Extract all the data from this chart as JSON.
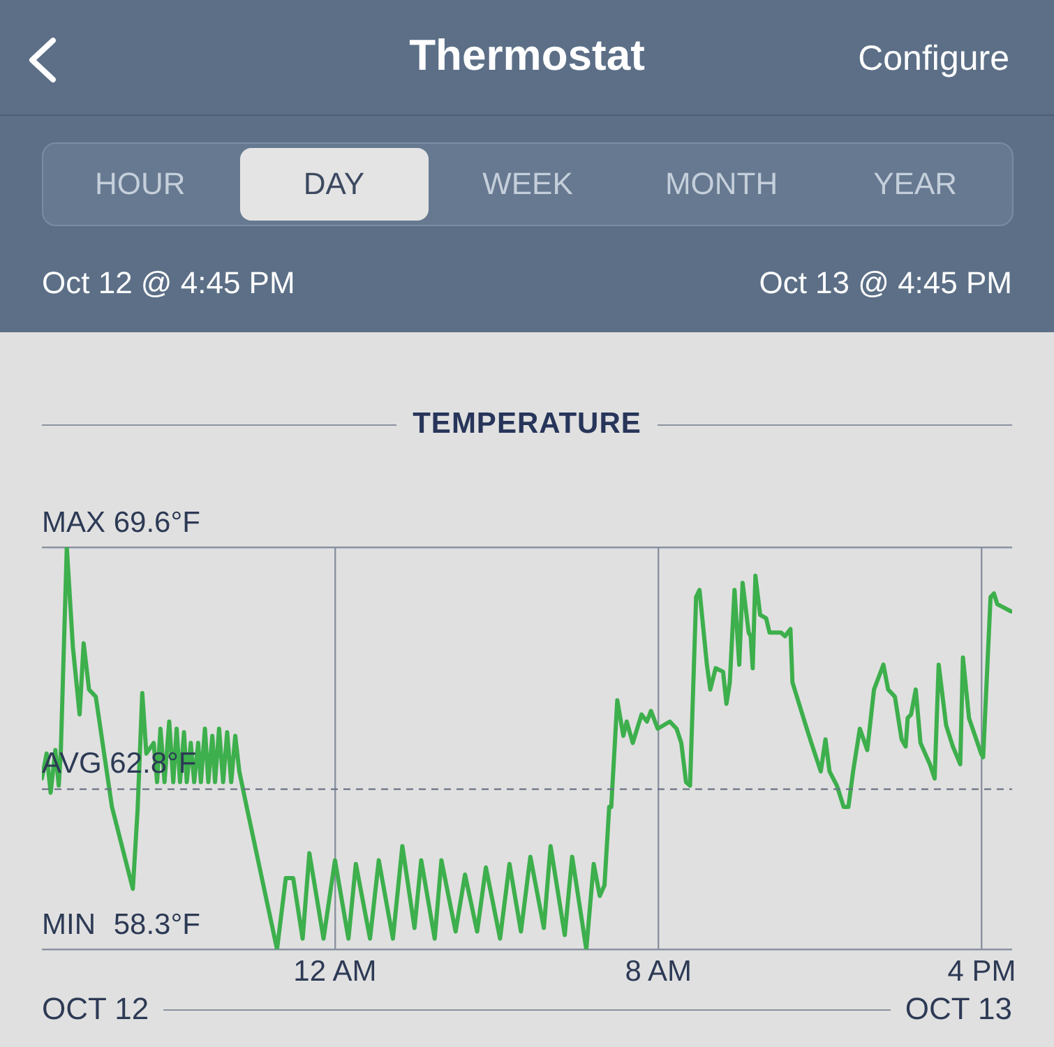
{
  "chart_data": {
    "type": "line",
    "title": "TEMPERATURE",
    "x": [
      "--10-12T16:45",
      "--10-12T16:52",
      "--10-12T16:58",
      "--10-12T17:05",
      "--10-12T17:10",
      "--10-12T17:13",
      "--10-12T17:22",
      "--10-12T17:31",
      "--10-12T17:41",
      "--10-12T17:47",
      "--10-12T17:55",
      "--10-12T18:05",
      "--10-12T18:29",
      "--10-12T19:00",
      "--10-12T19:07",
      "--10-12T19:14",
      "--10-12T19:20",
      "--10-12T19:31",
      "--10-12T19:36",
      "--10-12T19:41",
      "--10-12T19:47",
      "--10-12T19:54",
      "--10-12T20:00",
      "--10-12T20:05",
      "--10-12T20:10",
      "--10-12T20:16",
      "--10-12T20:20",
      "--10-12T20:26",
      "--10-12T20:31",
      "--10-12T20:37",
      "--10-12T20:41",
      "--10-12T20:47",
      "--10-12T20:52",
      "--10-12T20:58",
      "--10-12T21:02",
      "--10-12T21:08",
      "--10-12T21:14",
      "--10-12T21:20",
      "--10-12T21:26",
      "--10-12T21:32",
      "--10-12T21:38",
      "--10-12T21:49",
      "--10-12T22:34",
      "--10-12T22:47",
      "--10-12T22:58",
      "--10-12T23:12",
      "--10-12T23:22",
      "--10-12T23:43",
      "--10-13T00:00",
      "--10-13T00:20",
      "--10-13T00:31",
      "--10-13T00:52",
      "--10-13T01:05",
      "--10-13T01:26",
      "--10-13T01:40",
      "--10-13T01:58",
      "--10-13T02:08",
      "--10-13T02:28",
      "--10-13T02:38",
      "--10-13T02:59",
      "--10-13T03:13",
      "--10-13T03:31",
      "--10-13T03:44",
      "--10-13T04:05",
      "--10-13T04:19",
      "--10-13T04:36",
      "--10-13T04:50",
      "--10-13T05:10",
      "--10-13T05:20",
      "--10-13T05:41",
      "--10-13T05:52",
      "--10-13T06:13",
      "--10-13T06:24",
      "--10-13T06:33",
      "--10-13T06:40",
      "--10-13T06:47",
      "--10-13T06:50",
      "--10-13T06:59",
      "--10-13T07:08",
      "--10-13T07:13",
      "--10-13T07:22",
      "--10-13T07:35",
      "--10-13T07:43",
      "--10-13T07:49",
      "--10-13T07:59",
      "--10-13T08:17",
      "--10-13T08:27",
      "--10-13T08:34",
      "--10-13T08:41",
      "--10-13T08:47",
      "--10-13T08:56",
      "--10-13T09:01",
      "--10-13T09:12",
      "--10-13T09:17",
      "--10-13T09:25",
      "--10-13T09:36",
      "--10-13T09:41",
      "--10-13T09:46",
      "--10-13T09:53",
      "--10-13T10:00",
      "--10-13T10:05",
      "--10-13T10:14",
      "--10-13T10:17",
      "--10-13T10:20",
      "--10-13T10:24",
      "--10-13T10:31",
      "--10-13T10:40",
      "--10-13T10:45",
      "--10-13T11:02",
      "--10-13T11:08",
      "--10-13T11:16",
      "--10-13T11:19",
      "--10-13T11:37",
      "--10-13T11:47",
      "--10-13T12:01",
      "--10-13T12:08",
      "--10-13T12:14",
      "--10-13T12:25",
      "--10-13T12:35",
      "--10-13T12:42",
      "--10-13T12:49",
      "--10-13T12:59",
      "--10-13T13:10",
      "--10-13T13:20",
      "--10-13T13:34",
      "--10-13T13:41",
      "--10-13T13:51",
      "--10-13T14:01",
      "--10-13T14:07",
      "--10-13T14:10",
      "--10-13T14:15",
      "--10-13T14:22",
      "--10-13T14:29",
      "--10-13T14:43",
      "--10-13T14:50",
      "--10-13T14:56",
      "--10-13T15:07",
      "--10-13T15:17",
      "--10-13T15:28",
      "--10-13T15:32",
      "--10-13T15:41",
      "--10-13T15:59",
      "--10-13T16:02",
      "--10-13T16:13",
      "--10-13T16:18",
      "--10-13T16:23",
      "--10-13T16:33",
      "--10-13T16:43"
    ],
    "series": [
      {
        "color": "#3daf4c",
        "values": [
          63.1,
          63.8,
          62.7,
          63.9,
          62.9,
          63.8,
          69.6,
          66.8,
          64.9,
          66.9,
          65.6,
          65.4,
          62.3,
          60.0,
          62.2,
          65.5,
          63.8,
          64.1,
          63.0,
          64.5,
          63.0,
          64.7,
          63.0,
          64.5,
          63.0,
          64.4,
          63.0,
          64.1,
          63.0,
          64.1,
          63.0,
          64.5,
          63.0,
          64.3,
          63.0,
          64.5,
          63.0,
          64.4,
          63.0,
          64.3,
          63.3,
          62.3,
          58.3,
          60.3,
          60.3,
          58.6,
          61.0,
          58.6,
          60.8,
          58.6,
          60.7,
          58.6,
          60.8,
          58.6,
          61.2,
          58.9,
          60.8,
          58.6,
          60.8,
          58.8,
          60.4,
          58.8,
          60.6,
          58.6,
          60.7,
          58.8,
          60.9,
          58.9,
          61.2,
          58.7,
          60.9,
          58.3,
          60.7,
          59.8,
          60.1,
          62.3,
          62.3,
          65.3,
          64.3,
          64.7,
          64.1,
          64.9,
          64.7,
          65.0,
          64.5,
          64.7,
          64.5,
          64.1,
          63.0,
          62.9,
          68.2,
          68.4,
          66.3,
          65.6,
          66.2,
          66.1,
          65.2,
          65.8,
          68.4,
          66.3,
          68.6,
          67.2,
          67.1,
          66.2,
          68.8,
          67.7,
          67.6,
          67.2,
          67.2,
          67.1,
          67.3,
          65.8,
          64.7,
          64.1,
          63.3,
          64.2,
          63.3,
          62.9,
          62.3,
          62.3,
          63.3,
          64.5,
          63.9,
          65.6,
          66.3,
          65.6,
          65.4,
          64.2,
          64.0,
          64.8,
          64.9,
          65.6,
          64.1,
          63.5,
          63.1,
          66.3,
          64.6,
          64.0,
          63.5,
          66.5,
          64.8,
          63.8,
          63.7,
          68.2,
          68.3,
          68.0,
          67.9,
          67.8
        ]
      }
    ],
    "xlim": [
      "--10-12T16:45",
      "--10-13T16:45"
    ],
    "xticks": [
      {
        "value": "--10-13T00:00",
        "label": "12 AM"
      },
      {
        "value": "--10-13T08:00",
        "label": "8 AM"
      },
      {
        "value": "--10-13T16:00",
        "label": "4 PM"
      }
    ],
    "ylim": [
      58.3,
      69.6
    ],
    "yticks": [
      {
        "value": 69.6,
        "label": "69.6°F"
      },
      {
        "value": 58.3,
        "label": "58.3°F"
      }
    ],
    "ref_lines": [
      {
        "axis": "y",
        "value": 62.8,
        "label": "AVG 62.8°F",
        "color": "#6b7385",
        "line_style": "dashed"
      }
    ],
    "annotations": [
      "Thermostat",
      "Configure",
      "HOUR",
      "DAY",
      "WEEK",
      "MONTH",
      "YEAR",
      "Oct 12 @ 4:45 PM",
      "Oct 13 @ 4:45 PM",
      "OCT 12",
      "OCT 13",
      "MAX",
      "MIN"
    ],
    "grid": true,
    "legend": false,
    "marker": "none",
    "line_style": "solid"
  }
}
